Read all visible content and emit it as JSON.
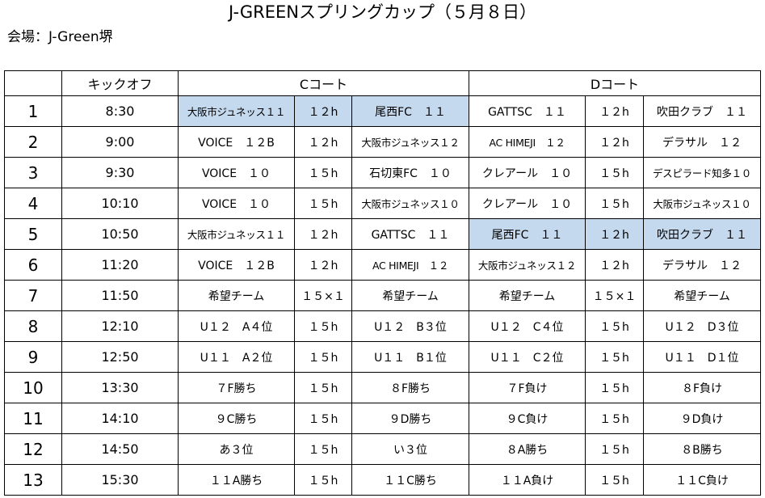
{
  "title": "J-GREENスプリングカップ（５月８日）",
  "venue": "会場：J-Green堺",
  "header": {
    "blank": "",
    "kickoff": "キックオフ",
    "court_c": "Cコート",
    "court_d": "Dコート"
  },
  "colors": {
    "highlight": "#c5d9ee"
  },
  "rows": [
    {
      "no": "1",
      "time": "8:30",
      "c_home": "大阪市ジュネッス１１",
      "c_dur": "１２h",
      "c_away": "尾西FC　１１",
      "d_home": "GATTSC　１１",
      "d_dur": "１２h",
      "d_away": "吹田クラブ　１１"
    },
    {
      "no": "2",
      "time": "9:00",
      "c_home": "VOICE　１２B",
      "c_dur": "１２h",
      "c_away": "大阪市ジュネッス１２",
      "d_home": "AC HIMEJI　１２",
      "d_dur": "１２h",
      "d_away": "デラサル　１２"
    },
    {
      "no": "3",
      "time": "9:30",
      "c_home": "VOICE　１０",
      "c_dur": "１５h",
      "c_away": "石切東FC　１０",
      "d_home": "クレアール　１０",
      "d_dur": "１５h",
      "d_away": "デスピラード知多１０"
    },
    {
      "no": "4",
      "time": "10:10",
      "c_home": "VOICE　１０",
      "c_dur": "１５h",
      "c_away": "大阪市ジュネッス１０",
      "d_home": "クレアール　１０",
      "d_dur": "１５h",
      "d_away": "大阪市ジュネッス１０"
    },
    {
      "no": "5",
      "time": "10:50",
      "c_home": "大阪市ジュネッス１１",
      "c_dur": "１２h",
      "c_away": "GATTSC　１１",
      "d_home": "尾西FC　１１",
      "d_dur": "１２h",
      "d_away": "吹田クラブ　１１"
    },
    {
      "no": "6",
      "time": "11:20",
      "c_home": "VOICE　１２B",
      "c_dur": "１２h",
      "c_away": "AC HIMEJI　１２",
      "d_home": "大阪市ジュネッス１２",
      "d_dur": "１２h",
      "d_away": "デラサル　１２"
    },
    {
      "no": "7",
      "time": "11:50",
      "c_home": "希望チーム",
      "c_dur": "１５×１",
      "c_away": "希望チーム",
      "d_home": "希望チーム",
      "d_dur": "１５×１",
      "d_away": "希望チーム"
    },
    {
      "no": "8",
      "time": "12:10",
      "c_home": "U１２　A４位",
      "c_dur": "１５h",
      "c_away": "U１２　B３位",
      "d_home": "U１２　C４位",
      "d_dur": "１５h",
      "d_away": "U１２　D３位"
    },
    {
      "no": "9",
      "time": "12:50",
      "c_home": "U１１　A２位",
      "c_dur": "１５h",
      "c_away": "U１１　B１位",
      "d_home": "U１１　C２位",
      "d_dur": "１５h",
      "d_away": "U１１　D１位"
    },
    {
      "no": "10",
      "time": "13:30",
      "c_home": "７F勝ち",
      "c_dur": "１５h",
      "c_away": "８F勝ち",
      "d_home": "７F負け",
      "d_dur": "１５h",
      "d_away": "８F負け"
    },
    {
      "no": "11",
      "time": "14:10",
      "c_home": "９C勝ち",
      "c_dur": "１５h",
      "c_away": "９D勝ち",
      "d_home": "９C負け",
      "d_dur": "１５h",
      "d_away": "９D負け"
    },
    {
      "no": "12",
      "time": "14:50",
      "c_home": "あ３位",
      "c_dur": "１５h",
      "c_away": "い３位",
      "d_home": "８A勝ち",
      "d_dur": "１５h",
      "d_away": "８B勝ち"
    },
    {
      "no": "13",
      "time": "15:30",
      "c_home": "１１A勝ち",
      "c_dur": "１５h",
      "c_away": "１１C勝ち",
      "d_home": "１１A負け",
      "d_dur": "１５h",
      "d_away": "１１C負け"
    }
  ]
}
